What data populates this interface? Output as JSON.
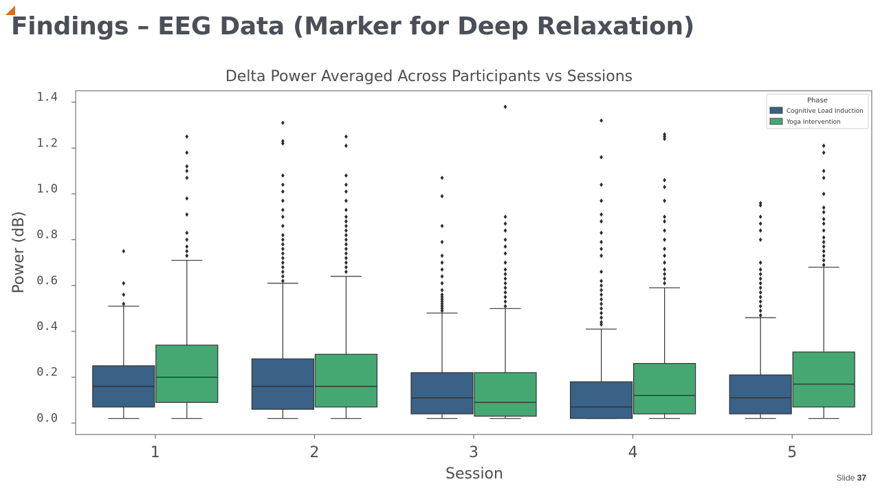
{
  "slide": {
    "title": "Findings – EEG Data (Marker for Deep Relaxation)",
    "footer_label": "Slide",
    "footer_number": "37",
    "accent_color": "#e06c1e"
  },
  "chart_data": {
    "type": "box",
    "title": "Delta Power Averaged Across Participants vs Sessions",
    "xlabel": "Session",
    "ylabel": "Power (dB)",
    "categories": [
      "1",
      "2",
      "3",
      "4",
      "5"
    ],
    "ylim": [
      -0.05,
      1.45
    ],
    "yticks": [
      "0.0",
      "0.2",
      "0.4",
      "0.6",
      "0.8",
      "1.0",
      "1.2",
      "1.4"
    ],
    "grid": false,
    "legend": {
      "title": "Phase",
      "placement": "top-right"
    },
    "series": [
      {
        "name": "Cognitive Load Induction",
        "color": "#3a6186",
        "boxes": [
          {
            "whisker_low": 0.02,
            "q1": 0.07,
            "median": 0.16,
            "q3": 0.25,
            "whisker_high": 0.51,
            "outliers": [
              0.52,
              0.56,
              0.61,
              0.75
            ]
          },
          {
            "whisker_low": 0.02,
            "q1": 0.06,
            "median": 0.16,
            "q3": 0.28,
            "whisker_high": 0.61,
            "outliers": [
              0.62,
              0.64,
              0.66,
              0.68,
              0.7,
              0.72,
              0.74,
              0.76,
              0.78,
              0.8,
              0.82,
              0.86,
              0.9,
              0.93,
              0.97,
              1.01,
              1.04,
              1.08,
              1.22,
              1.23,
              1.31
            ]
          },
          {
            "whisker_low": 0.02,
            "q1": 0.04,
            "median": 0.11,
            "q3": 0.22,
            "whisker_high": 0.48,
            "outliers": [
              0.49,
              0.5,
              0.51,
              0.52,
              0.53,
              0.54,
              0.55,
              0.56,
              0.58,
              0.61,
              0.64,
              0.67,
              0.7,
              0.73,
              0.79,
              0.86,
              0.99,
              1.07
            ]
          },
          {
            "whisker_low": 0.02,
            "q1": 0.02,
            "median": 0.07,
            "q3": 0.18,
            "whisker_high": 0.41,
            "outliers": [
              0.43,
              0.44,
              0.46,
              0.48,
              0.5,
              0.52,
              0.54,
              0.56,
              0.58,
              0.6,
              0.62,
              0.66,
              0.73,
              0.76,
              0.79,
              0.83,
              0.88,
              0.91,
              0.97,
              1.04,
              1.16,
              1.32
            ]
          },
          {
            "whisker_low": 0.02,
            "q1": 0.04,
            "median": 0.11,
            "q3": 0.21,
            "whisker_high": 0.46,
            "outliers": [
              0.47,
              0.49,
              0.51,
              0.53,
              0.55,
              0.57,
              0.59,
              0.61,
              0.63,
              0.65,
              0.67,
              0.7,
              0.8,
              0.84,
              0.87,
              0.9,
              0.95,
              0.96
            ]
          }
        ]
      },
      {
        "name": "Yoga Intervention",
        "color": "#45a873",
        "boxes": [
          {
            "whisker_low": 0.02,
            "q1": 0.09,
            "median": 0.2,
            "q3": 0.34,
            "whisker_high": 0.71,
            "outliers": [
              0.73,
              0.75,
              0.77,
              0.8,
              0.83,
              0.91,
              0.98,
              1.07,
              1.1,
              1.12,
              1.18,
              1.25
            ]
          },
          {
            "whisker_low": 0.02,
            "q1": 0.07,
            "median": 0.16,
            "q3": 0.3,
            "whisker_high": 0.64,
            "outliers": [
              0.66,
              0.68,
              0.7,
              0.72,
              0.74,
              0.76,
              0.78,
              0.8,
              0.82,
              0.84,
              0.86,
              0.88,
              0.9,
              0.93,
              0.97,
              1.01,
              1.04,
              1.08,
              1.21,
              1.25
            ]
          },
          {
            "whisker_low": 0.02,
            "q1": 0.03,
            "median": 0.09,
            "q3": 0.22,
            "whisker_high": 0.5,
            "outliers": [
              0.51,
              0.53,
              0.55,
              0.57,
              0.59,
              0.61,
              0.63,
              0.65,
              0.67,
              0.7,
              0.74,
              0.77,
              0.8,
              0.84,
              0.87,
              0.9,
              1.38
            ]
          },
          {
            "whisker_low": 0.02,
            "q1": 0.04,
            "median": 0.12,
            "q3": 0.26,
            "whisker_high": 0.59,
            "outliers": [
              0.61,
              0.63,
              0.65,
              0.67,
              0.7,
              0.73,
              0.76,
              0.8,
              0.84,
              0.88,
              0.9,
              0.97,
              1.03,
              1.06,
              1.24,
              1.25,
              1.26
            ]
          },
          {
            "whisker_low": 0.02,
            "q1": 0.07,
            "median": 0.17,
            "q3": 0.31,
            "whisker_high": 0.68,
            "outliers": [
              0.69,
              0.71,
              0.73,
              0.75,
              0.77,
              0.79,
              0.81,
              0.84,
              0.87,
              0.89,
              0.92,
              0.94,
              1.0,
              1.07,
              1.1,
              1.18,
              1.21
            ]
          }
        ]
      }
    ]
  }
}
